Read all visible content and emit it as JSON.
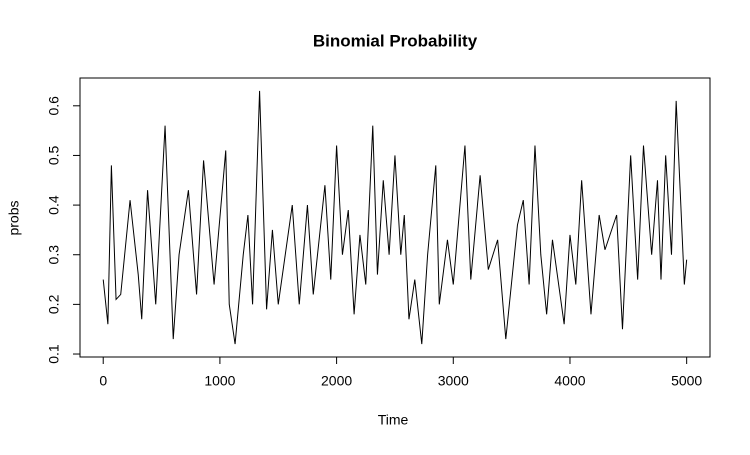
{
  "chart_data": {
    "type": "line",
    "title": "Binomial Probability",
    "x_label": "Time",
    "y_label": "probs",
    "x": [
      0,
      40,
      70,
      110,
      150,
      230,
      300,
      330,
      380,
      450,
      530,
      600,
      650,
      730,
      800,
      860,
      950,
      1050,
      1080,
      1130,
      1200,
      1240,
      1280,
      1340,
      1400,
      1450,
      1500,
      1620,
      1680,
      1750,
      1800,
      1900,
      1950,
      2000,
      2050,
      2100,
      2150,
      2200,
      2250,
      2310,
      2350,
      2400,
      2450,
      2500,
      2550,
      2580,
      2620,
      2670,
      2730,
      2780,
      2850,
      2880,
      2950,
      3000,
      3100,
      3150,
      3230,
      3300,
      3380,
      3450,
      3550,
      3600,
      3650,
      3700,
      3750,
      3800,
      3850,
      3950,
      4000,
      4050,
      4100,
      4180,
      4250,
      4300,
      4400,
      4450,
      4520,
      4580,
      4630,
      4700,
      4750,
      4780,
      4820,
      4870,
      4910,
      4950,
      4980,
      5000
    ],
    "series": [
      {
        "name": "probs",
        "color": "#000000",
        "values": [
          0.25,
          0.16,
          0.48,
          0.21,
          0.22,
          0.41,
          0.26,
          0.17,
          0.43,
          0.2,
          0.56,
          0.13,
          0.3,
          0.43,
          0.22,
          0.49,
          0.24,
          0.51,
          0.2,
          0.12,
          0.3,
          0.38,
          0.2,
          0.63,
          0.19,
          0.35,
          0.2,
          0.4,
          0.2,
          0.4,
          0.22,
          0.44,
          0.25,
          0.52,
          0.3,
          0.39,
          0.18,
          0.34,
          0.24,
          0.56,
          0.26,
          0.45,
          0.3,
          0.5,
          0.3,
          0.38,
          0.17,
          0.25,
          0.12,
          0.3,
          0.48,
          0.2,
          0.33,
          0.24,
          0.52,
          0.25,
          0.46,
          0.27,
          0.33,
          0.13,
          0.36,
          0.41,
          0.24,
          0.52,
          0.3,
          0.18,
          0.33,
          0.16,
          0.34,
          0.24,
          0.45,
          0.18,
          0.38,
          0.31,
          0.38,
          0.15,
          0.5,
          0.25,
          0.52,
          0.3,
          0.45,
          0.25,
          0.5,
          0.3,
          0.61,
          0.4,
          0.24,
          0.29
        ]
      }
    ],
    "xlim": [
      -199,
      5200
    ],
    "xticks": [
      0,
      1000,
      2000,
      3000,
      4000,
      5000
    ],
    "ylim": [
      0.094,
      0.656
    ],
    "yticks": [
      0.1,
      0.2,
      0.3,
      0.4,
      0.5,
      0.6
    ]
  }
}
